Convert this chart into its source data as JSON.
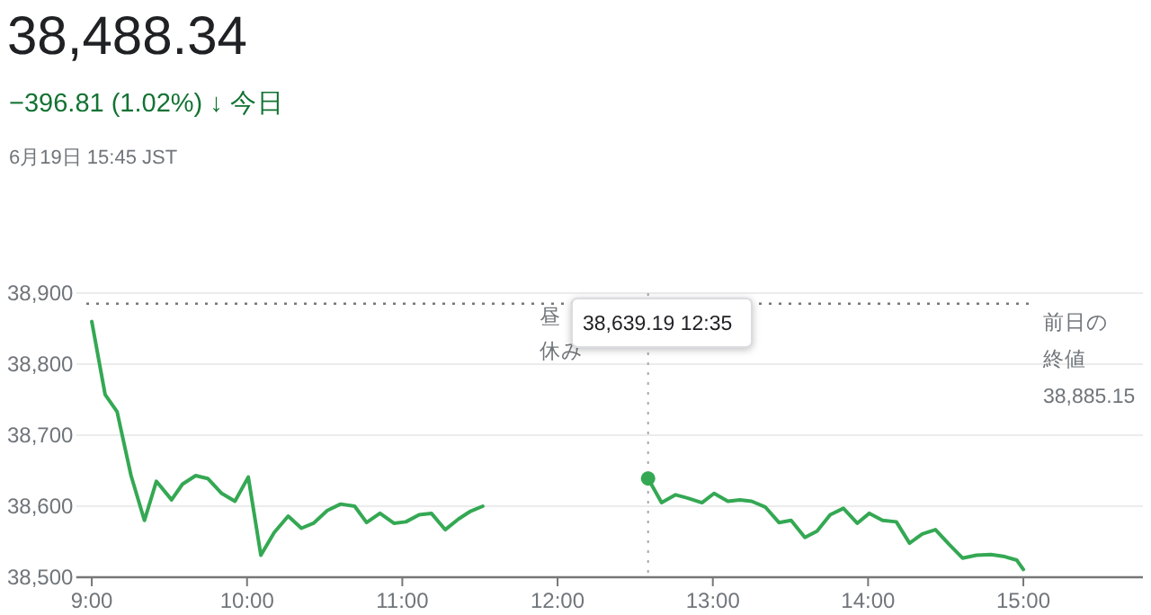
{
  "chart_data": {
    "type": "line",
    "title": "38,488.34",
    "subtitle": "−396.81 (1.02%) ↓ 今日",
    "annotations": [
      "6月19日 15:45 JST",
      "昼休み",
      "38,639.19 12:35"
    ],
    "series": [
      {
        "color": "#34a853",
        "x": [
          9,
          9.086,
          9.163,
          9.253,
          9.339,
          9.416,
          9.514,
          9.584,
          9.669,
          9.747,
          9.837,
          9.922,
          10.008,
          10.089,
          10.175,
          10.265,
          10.35,
          10.428,
          10.517,
          10.603,
          10.693,
          10.77,
          10.856,
          10.946,
          11.023,
          11.109,
          11.187,
          11.276,
          11.362,
          11.44,
          11.518
        ],
        "values": [
          38860,
          38757,
          38733,
          38643,
          38580,
          38635,
          38609,
          38631,
          38643,
          38639,
          38618,
          38607,
          38641,
          38531,
          38563,
          38586,
          38569,
          38576,
          38594,
          38603,
          38600,
          38577,
          38590,
          38576,
          38578,
          38588,
          38590,
          38567,
          38582,
          38593,
          38600
        ]
      },
      {
        "color": "#34a853",
        "x": [
          12.583,
          12.67,
          12.76,
          12.845,
          12.93,
          13.008,
          13.097,
          13.174,
          13.25,
          13.337,
          13.426,
          13.504,
          13.593,
          13.671,
          13.756,
          13.841,
          13.93,
          14.008,
          14.093,
          14.182,
          14.267,
          14.349,
          14.434,
          14.523,
          14.608,
          14.698,
          14.791,
          14.88,
          14.958,
          15
        ],
        "values": [
          38639,
          38605,
          38616,
          38611,
          38605,
          38618,
          38607,
          38609,
          38607,
          38599,
          38577,
          38580,
          38556,
          38565,
          38588,
          38597,
          38576,
          38590,
          38580,
          38578,
          38548,
          38561,
          38567,
          38546,
          38527,
          38531,
          38532,
          38529,
          38524,
          38511
        ]
      }
    ],
    "xlim": [
      8.9,
      15.77
    ],
    "xticks": [
      {
        "value": 9,
        "label": "9:00"
      },
      {
        "value": 10,
        "label": "10:00"
      },
      {
        "value": 11,
        "label": "11:00"
      },
      {
        "value": 12,
        "label": "12:00"
      },
      {
        "value": 13,
        "label": "13:00"
      },
      {
        "value": 14,
        "label": "14:00"
      },
      {
        "value": 15,
        "label": "15:00"
      }
    ],
    "ylim": [
      38500,
      38900
    ],
    "yticks": [
      {
        "value": 38500,
        "label": "38,500"
      },
      {
        "value": 38600,
        "label": "38,600"
      },
      {
        "value": 38700,
        "label": "38,700"
      },
      {
        "value": 38800,
        "label": "38,800"
      },
      {
        "value": 38900,
        "label": "38,900"
      }
    ],
    "grid": "y",
    "marker": "none",
    "line_style": "solid",
    "ref_lines": [
      {
        "axis": "y",
        "value": 38885.15,
        "label": "前日の終値 38,885.15",
        "line_style": "dotted",
        "color": "#777777"
      },
      {
        "axis": "x",
        "value": 12.583,
        "line_style": "dotted",
        "color": "#aaaaaa"
      }
    ]
  }
}
